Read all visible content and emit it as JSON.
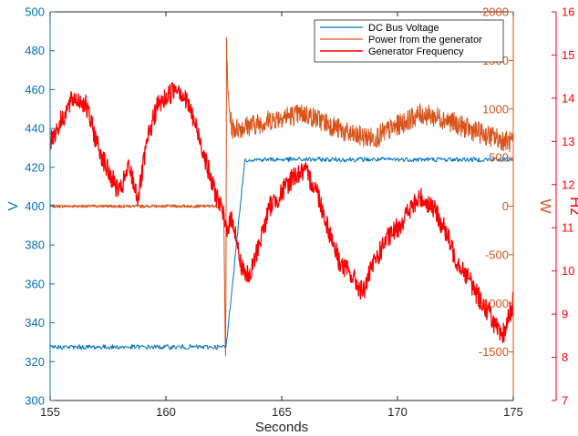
{
  "chart_data": {
    "type": "line",
    "xlabel": "Seconds",
    "xlim": [
      155,
      175
    ],
    "xticks": [
      155,
      160,
      165,
      170,
      175
    ],
    "axes": {
      "left": {
        "label": "V",
        "lim": [
          300,
          500
        ],
        "ticks": [
          300,
          320,
          340,
          360,
          380,
          400,
          420,
          440,
          460,
          480,
          500
        ],
        "color": "#0072BD"
      },
      "right1": {
        "label": "W",
        "lim": [
          -2000,
          2000
        ],
        "ticks": [
          -1500,
          -1000,
          -500,
          0,
          500,
          1000,
          1500,
          2000
        ],
        "color": "#D95319"
      },
      "right2": {
        "label": "Hz",
        "lim": [
          7,
          16
        ],
        "ticks": [
          7,
          8,
          9,
          10,
          11,
          12,
          13,
          14,
          15,
          16
        ],
        "color": "#FF0000"
      }
    },
    "grid": false,
    "legend_position": "top-right",
    "series": [
      {
        "name": "DC Bus Voltage",
        "axis": "left",
        "color": "#0072BD",
        "x": [
          155,
          156,
          157,
          158,
          159,
          160,
          161,
          162,
          162.5,
          162.6,
          163.0,
          163.4,
          163.5,
          164,
          165,
          166,
          167,
          168,
          169,
          170,
          171,
          172,
          173,
          174,
          175
        ],
        "y": [
          327.5,
          327.5,
          327.5,
          327.5,
          327.5,
          327.5,
          327.5,
          327.5,
          327.5,
          327.5,
          375,
          423,
          424,
          424,
          424,
          424,
          424,
          424,
          424,
          424,
          424,
          424,
          424,
          424,
          424
        ]
      },
      {
        "name": "Power from the generator",
        "axis": "right1",
        "color": "#D95319",
        "x": [
          155,
          156,
          157,
          158,
          159,
          160,
          161,
          162,
          162.5,
          162.58,
          162.62,
          162.7,
          162.85,
          163,
          164,
          165,
          166,
          167,
          168,
          169,
          170,
          171,
          172,
          173,
          174,
          175
        ],
        "y": [
          0,
          0,
          0,
          0,
          0,
          0,
          0,
          0,
          0,
          -1750,
          1650,
          1050,
          800,
          800,
          850,
          920,
          950,
          850,
          730,
          700,
          830,
          950,
          900,
          800,
          720,
          650
        ]
      },
      {
        "name": "Generator Frequency",
        "axis": "right2",
        "color": "#FF0000",
        "x": [
          155,
          155.5,
          156,
          156.5,
          157,
          157.5,
          158,
          158.4,
          158.8,
          159.2,
          159.6,
          160,
          160.5,
          161,
          161.5,
          162,
          162.3,
          162.6,
          162.9,
          163.2,
          163.6,
          164,
          164.5,
          165,
          165.5,
          166,
          166.5,
          167,
          167.5,
          168,
          168.5,
          169,
          169.5,
          170,
          170.5,
          171,
          171.5,
          172,
          172.5,
          173,
          173.5,
          174,
          174.5,
          175
        ],
        "y": [
          13.0,
          13.5,
          14.0,
          13.9,
          13.0,
          12.3,
          11.8,
          12.4,
          11.7,
          13.0,
          13.8,
          14.0,
          14.3,
          13.8,
          13.0,
          12.0,
          11.6,
          11.0,
          11.2,
          10.2,
          9.8,
          10.6,
          11.5,
          11.8,
          12.2,
          12.3,
          11.9,
          11.0,
          10.2,
          9.9,
          9.5,
          10.2,
          10.7,
          11.0,
          11.4,
          11.7,
          11.5,
          11.0,
          10.3,
          9.9,
          9.4,
          9.0,
          8.4,
          9.3
        ]
      }
    ]
  }
}
